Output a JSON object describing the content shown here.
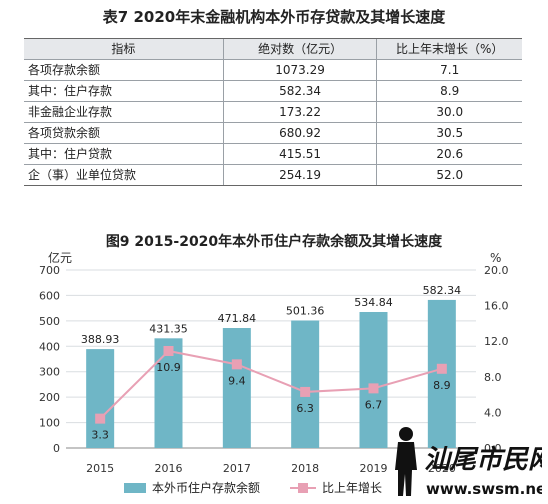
{
  "table": {
    "title": "表7  2020年末金融机构本外币存贷款及其增长速度",
    "headers": [
      "指标",
      "绝对数（亿元）",
      "比上年末增长（%）"
    ],
    "rows": [
      {
        "label": "各项存款余额",
        "value": "1073.29",
        "growth": "7.1",
        "indent": 0
      },
      {
        "label": "其中：住户存款",
        "value": "582.34",
        "growth": "8.9",
        "indent": 0
      },
      {
        "label": "非金融企业存款",
        "value": "173.22",
        "growth": "30.0",
        "indent": 1
      },
      {
        "label": "各项贷款余额",
        "value": "680.92",
        "growth": "30.5",
        "indent": 0
      },
      {
        "label": "其中：住户贷款",
        "value": "415.51",
        "growth": "20.6",
        "indent": 0
      },
      {
        "label": "企（事）业单位贷款",
        "value": "254.19",
        "growth": "52.0",
        "indent": 2
      }
    ]
  },
  "chart_data": {
    "type": "bar",
    "title": "图9  2015-2020年本外币住户存款余额及其增长速度",
    "categories": [
      "2015",
      "2016",
      "2017",
      "2018",
      "2019",
      "2020"
    ],
    "left_axis": {
      "unit": "亿元",
      "min": 0,
      "max": 700,
      "ticks": [
        "0",
        "100",
        "200",
        "300",
        "400",
        "500",
        "600",
        "700"
      ]
    },
    "right_axis": {
      "unit": "%",
      "min": 0,
      "max": 20,
      "ticks": [
        "0.0",
        "4.0",
        "8.0",
        "12.0",
        "16.0",
        "20.0"
      ]
    },
    "series": [
      {
        "name": "本外币住户存款余额",
        "type": "bar",
        "axis": "left",
        "color": "#6fb6c6",
        "values": [
          388.93,
          431.35,
          471.84,
          501.36,
          534.84,
          582.34
        ],
        "labels": [
          "388.93",
          "431.35",
          "471.84",
          "501.36",
          "534.84",
          "582.34"
        ]
      },
      {
        "name": "比上年增长",
        "type": "line",
        "axis": "right",
        "color": "#e8a0b4",
        "values": [
          3.3,
          10.9,
          9.4,
          6.3,
          6.7,
          8.9
        ],
        "labels": [
          "3.3",
          "10.9",
          "9.4",
          "6.3",
          "6.7",
          "8.9"
        ]
      }
    ],
    "grid": true,
    "legend": "bottom"
  },
  "watermark": {
    "brand": "汕尾市民网",
    "url": "www.swsm.net"
  }
}
